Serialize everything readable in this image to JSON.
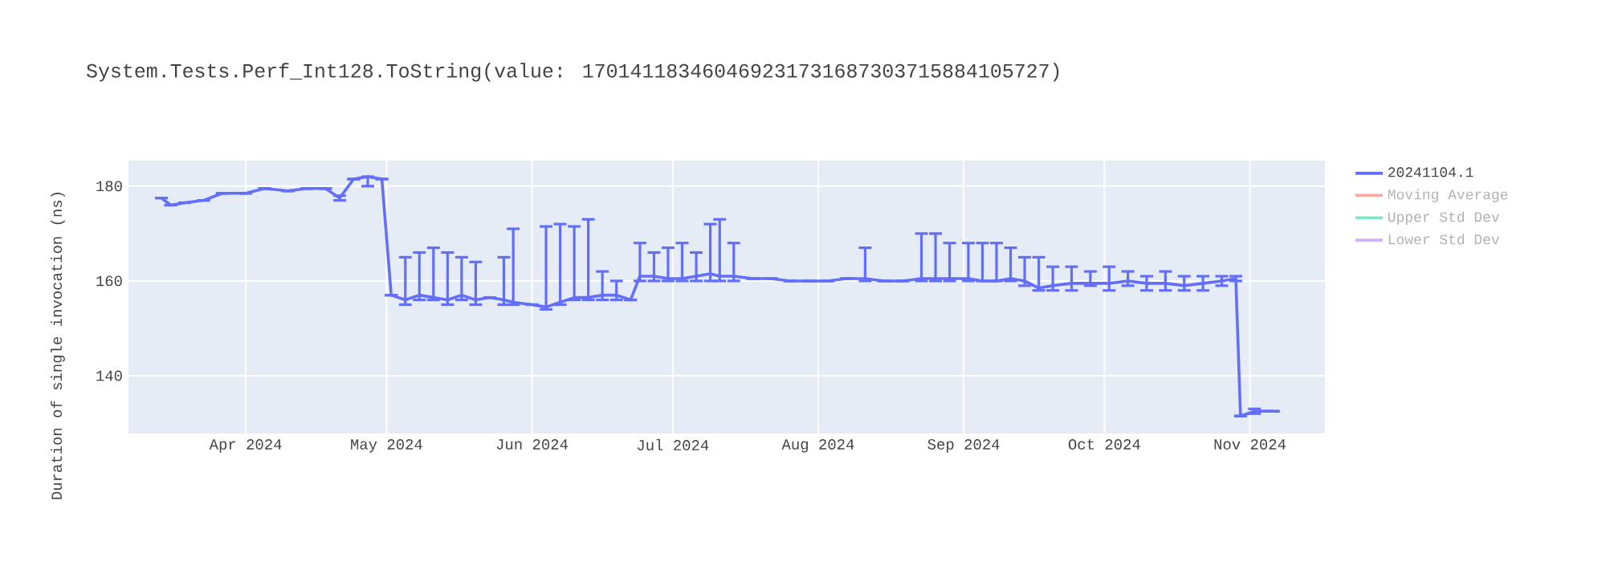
{
  "chart_data": {
    "type": "line",
    "title": "System.Tests.Perf_Int128.ToString(value: 170141183460469231731687303715884105727)",
    "ylabel": "Duration of single invocation (ns)",
    "x": [
      "2024-03-14",
      "2024-03-16",
      "2024-03-19",
      "2024-03-23",
      "2024-03-27",
      "2024-04-01",
      "2024-04-05",
      "2024-04-10",
      "2024-04-14",
      "2024-04-18",
      "2024-04-21",
      "2024-04-24",
      "2024-04-27",
      "2024-04-30",
      "2024-05-02",
      "2024-05-05",
      "2024-05-08",
      "2024-05-11",
      "2024-05-14",
      "2024-05-17",
      "2024-05-20",
      "2024-05-23",
      "2024-05-26",
      "2024-05-28",
      "2024-06-01",
      "2024-06-04",
      "2024-06-07",
      "2024-06-10",
      "2024-06-13",
      "2024-06-16",
      "2024-06-19",
      "2024-06-22",
      "2024-06-24",
      "2024-06-27",
      "2024-06-30",
      "2024-07-03",
      "2024-07-06",
      "2024-07-09",
      "2024-07-11",
      "2024-07-14",
      "2024-07-18",
      "2024-07-22",
      "2024-07-26",
      "2024-07-30",
      "2024-08-03",
      "2024-08-07",
      "2024-08-11",
      "2024-08-15",
      "2024-08-19",
      "2024-08-23",
      "2024-08-26",
      "2024-08-29",
      "2024-09-02",
      "2024-09-05",
      "2024-09-08",
      "2024-09-11",
      "2024-09-14",
      "2024-09-17",
      "2024-09-20",
      "2024-09-24",
      "2024-09-28",
      "2024-10-02",
      "2024-10-06",
      "2024-10-10",
      "2024-10-14",
      "2024-10-18",
      "2024-10-22",
      "2024-10-26",
      "2024-10-29",
      "2024-10-30",
      "2024-11-02",
      "2024-11-04",
      "2024-11-06"
    ],
    "series": [
      {
        "name": "20241104.1",
        "color": "#636efa",
        "values": [
          177.5,
          176,
          176.5,
          177,
          178.5,
          178.5,
          179.5,
          179,
          179.5,
          179.5,
          177.5,
          181.5,
          182,
          181.5,
          157,
          156,
          157,
          156.5,
          156,
          157,
          156,
          156.5,
          156,
          155.5,
          155,
          154.5,
          155.5,
          156.5,
          156.5,
          157,
          157,
          156,
          161,
          161,
          160.5,
          160.5,
          161,
          161.5,
          161,
          161,
          160.5,
          160.5,
          160,
          160,
          160,
          160.5,
          160.5,
          160,
          160,
          160.5,
          160.5,
          160.5,
          160.5,
          160,
          160,
          160.5,
          160,
          158.5,
          159,
          159.5,
          159.5,
          159.5,
          160,
          159.5,
          159.5,
          159,
          159.5,
          160,
          160.5,
          131.5,
          132.5,
          132.5,
          132.5
        ],
        "errors": [
          null,
          null,
          null,
          null,
          null,
          null,
          null,
          null,
          null,
          null,
          [
            177,
            178
          ],
          null,
          [
            180,
            182
          ],
          null,
          null,
          [
            155,
            165
          ],
          [
            156,
            166
          ],
          [
            156,
            167
          ],
          [
            155,
            166
          ],
          [
            156,
            165
          ],
          [
            155,
            164
          ],
          null,
          [
            155,
            165
          ],
          [
            155,
            171
          ],
          null,
          [
            154,
            171.5
          ],
          [
            155,
            172
          ],
          [
            156,
            171.5
          ],
          [
            156,
            173
          ],
          [
            156,
            162
          ],
          [
            156,
            160
          ],
          null,
          [
            160,
            168
          ],
          [
            160,
            166
          ],
          [
            160,
            167
          ],
          [
            160,
            168
          ],
          [
            160,
            166
          ],
          [
            160,
            172
          ],
          [
            160,
            173
          ],
          [
            160,
            168
          ],
          null,
          null,
          null,
          null,
          null,
          null,
          [
            160,
            167
          ],
          null,
          null,
          [
            160,
            170
          ],
          [
            160,
            170
          ],
          [
            160,
            168
          ],
          [
            160,
            168
          ],
          [
            160,
            168
          ],
          [
            160,
            168
          ],
          [
            160,
            167
          ],
          [
            159,
            165
          ],
          [
            158,
            165
          ],
          [
            158,
            163
          ],
          [
            158,
            163
          ],
          [
            159,
            162
          ],
          [
            158,
            163
          ],
          [
            159,
            162
          ],
          [
            158,
            161
          ],
          [
            158,
            162
          ],
          [
            158,
            161
          ],
          [
            158,
            161
          ],
          [
            159,
            161
          ],
          [
            160,
            161
          ],
          null,
          [
            132,
            133
          ],
          null,
          null
        ]
      },
      {
        "name": "Moving Average",
        "color": "#f7aa9d",
        "values": [
          null,
          null,
          null,
          null,
          null,
          null,
          null,
          null,
          null,
          null,
          null,
          null,
          null,
          null,
          null,
          null,
          null,
          null,
          null,
          null,
          null,
          null,
          null,
          null,
          null,
          null,
          null,
          null,
          null,
          null,
          null,
          null,
          null,
          null,
          null,
          null,
          null,
          null,
          null,
          null,
          null,
          null,
          null,
          null,
          null,
          null,
          null,
          null,
          null,
          null,
          null,
          null,
          null,
          null,
          null,
          null,
          null,
          null,
          null,
          null,
          null,
          null,
          null,
          null,
          null,
          null,
          null,
          null,
          null,
          null,
          null,
          null,
          null
        ]
      },
      {
        "name": "Upper Std Dev",
        "color": "#7fe5ca",
        "values": [
          null,
          null,
          null,
          null,
          null,
          null,
          null,
          null,
          null,
          null,
          null,
          null,
          null,
          null,
          null,
          null,
          null,
          null,
          null,
          null,
          null,
          null,
          null,
          null,
          null,
          null,
          null,
          null,
          null,
          null,
          null,
          null,
          null,
          null,
          null,
          null,
          null,
          null,
          null,
          null,
          null,
          null,
          null,
          null,
          null,
          null,
          null,
          null,
          null,
          null,
          null,
          null,
          null,
          null,
          null,
          null,
          null,
          null,
          null,
          null,
          null,
          null,
          null,
          null,
          null,
          null,
          null,
          null,
          null,
          null,
          null,
          null,
          null
        ]
      },
      {
        "name": "Lower Std Dev",
        "color": "#d5b1fc",
        "values": [
          null,
          null,
          null,
          null,
          null,
          null,
          null,
          null,
          null,
          null,
          null,
          null,
          null,
          null,
          null,
          null,
          null,
          null,
          null,
          null,
          null,
          null,
          null,
          null,
          null,
          null,
          null,
          null,
          null,
          null,
          null,
          null,
          null,
          null,
          null,
          null,
          null,
          null,
          null,
          null,
          null,
          null,
          null,
          null,
          null,
          null,
          null,
          null,
          null,
          null,
          null,
          null,
          null,
          null,
          null,
          null,
          null,
          null,
          null,
          null,
          null,
          null,
          null,
          null,
          null,
          null,
          null,
          null,
          null,
          null,
          null,
          null,
          null
        ]
      }
    ],
    "xlim": [
      "2024-03-07",
      "2024-11-17"
    ],
    "ylim": [
      127.8,
      185.4
    ],
    "xticks": [
      {
        "value": "2024-04-01",
        "label": "Apr 2024"
      },
      {
        "value": "2024-05-01",
        "label": "May 2024"
      },
      {
        "value": "2024-06-01",
        "label": "Jun 2024"
      },
      {
        "value": "2024-07-01",
        "label": "Jul 2024"
      },
      {
        "value": "2024-08-01",
        "label": "Aug 2024"
      },
      {
        "value": "2024-09-01",
        "label": "Sep 2024"
      },
      {
        "value": "2024-10-01",
        "label": "Oct 2024"
      },
      {
        "value": "2024-11-01",
        "label": "Nov 2024"
      }
    ],
    "yticks": [
      140,
      160,
      180
    ],
    "grid": true,
    "legend": "top right",
    "line_style": "solid",
    "marker": "none"
  }
}
